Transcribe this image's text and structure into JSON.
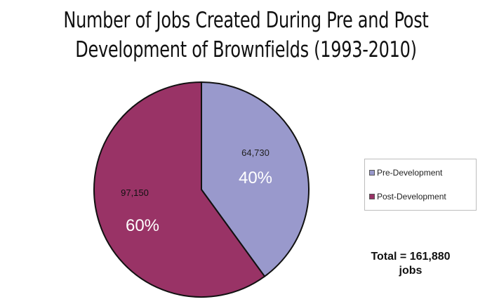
{
  "chart_data": {
    "type": "pie",
    "title_lines": [
      "Number of Jobs Created During Pre and Post",
      "Development of Brownfields (1993-2010)"
    ],
    "slices": [
      {
        "name": "Pre-Development",
        "value": 64730,
        "value_label": "64,730",
        "percent_label": "40%",
        "color": "#9999cc"
      },
      {
        "name": "Post-Development",
        "value": 97150,
        "value_label": "97,150",
        "percent_label": "60%",
        "color": "#993366"
      }
    ],
    "legend_position": "right",
    "annotation": {
      "line1": "Total = 161,880",
      "line2": "jobs"
    }
  }
}
